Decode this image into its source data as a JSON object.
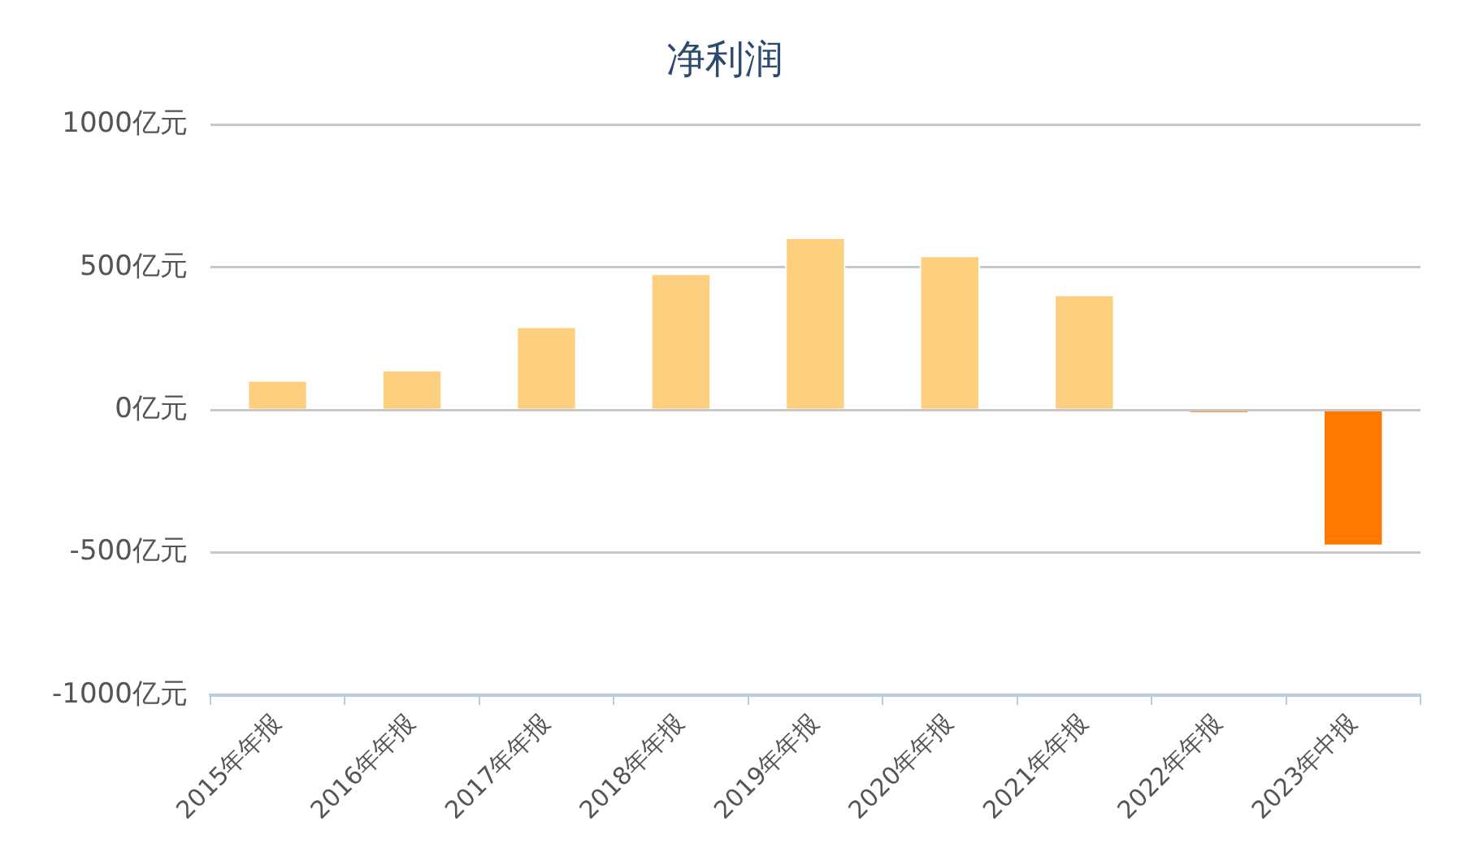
{
  "chart_data": {
    "type": "bar",
    "title": "净利润",
    "categories": [
      "2015年年报",
      "2016年年报",
      "2017年年报",
      "2018年年报",
      "2019年年报",
      "2020年年报",
      "2021年年报",
      "2022年年报",
      "2023年中报"
    ],
    "values": [
      105,
      141,
      293,
      479,
      605,
      542,
      405,
      -10,
      -478
    ],
    "colors": [
      "#fdd07f",
      "#fdd07f",
      "#fdd07f",
      "#fdd07f",
      "#fdd07f",
      "#fdd07f",
      "#fdd07f",
      "#ff7800",
      "#ff7800"
    ],
    "ylim": [
      -1000,
      1000
    ],
    "yticks": [
      {
        "value": -1000,
        "label": "-1000亿元"
      },
      {
        "value": -500,
        "label": "-500亿元"
      },
      {
        "value": 0,
        "label": "0亿元"
      },
      {
        "value": 500,
        "label": "500亿元"
      },
      {
        "value": 1000,
        "label": "1000亿元"
      }
    ],
    "grid": "y",
    "legend": false
  }
}
